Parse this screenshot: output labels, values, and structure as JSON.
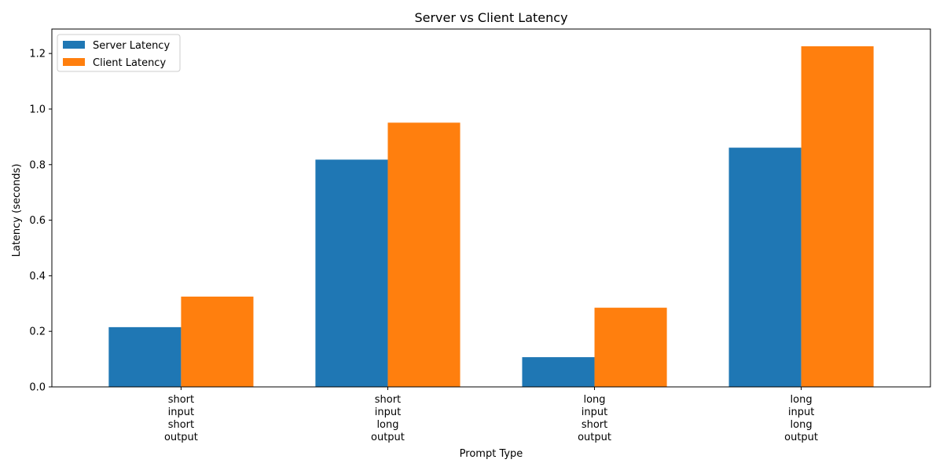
{
  "chart_data": {
    "type": "bar",
    "title": "Server vs Client Latency",
    "xlabel": "Prompt Type",
    "ylabel": "Latency (seconds)",
    "categories": [
      "short\ninput\nshort\noutput",
      "short\ninput\nlong\noutput",
      "long\ninput\nshort\noutput",
      "long\ninput\nlong\noutput"
    ],
    "series": [
      {
        "name": "Server Latency",
        "color": "#1f77b4",
        "values": [
          0.215,
          0.818,
          0.107,
          0.861
        ]
      },
      {
        "name": "Client Latency",
        "color": "#ff7f0e",
        "values": [
          0.325,
          0.951,
          0.285,
          1.226
        ]
      }
    ],
    "ylim": [
      0,
      1.288
    ],
    "yticks": [
      "0.0",
      "0.2",
      "0.4",
      "0.6",
      "0.8",
      "1.0",
      "1.2"
    ],
    "grid": false,
    "legend": "top-left"
  }
}
